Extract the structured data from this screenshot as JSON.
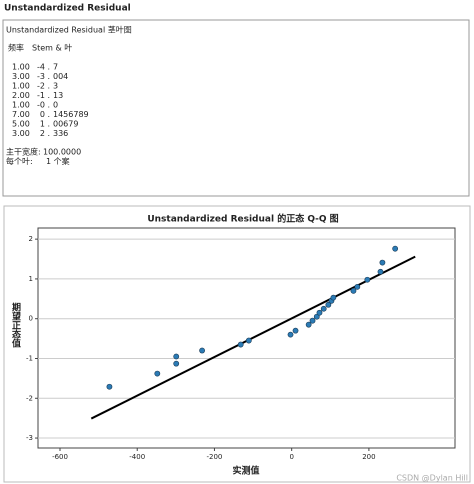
{
  "heading": "Unstandardized Residual",
  "stem_leaf": {
    "caption": "Unstandardized Residual 茎叶图",
    "columns": [
      "频率",
      "Stem &  叶"
    ],
    "rows": [
      [
        "1.00",
        "-4 .",
        "7"
      ],
      [
        "3.00",
        "-3 .",
        "004"
      ],
      [
        "1.00",
        "-2 .",
        "3"
      ],
      [
        "2.00",
        "-1 .",
        "13"
      ],
      [
        "1.00",
        "-0 .",
        "0"
      ],
      [
        "7.00",
        "0 .",
        "1456789"
      ],
      [
        "5.00",
        "1 .",
        "00679"
      ],
      [
        "3.00",
        "2 .",
        "336"
      ]
    ],
    "footer": [
      [
        "主干宽度:",
        "100.0000"
      ],
      [
        "每个叶:",
        "1 个案"
      ]
    ]
  },
  "chart_data": {
    "type": "scatter",
    "title": "Unstandardized Residual 的正态 Q-Q 图",
    "xlabel": "实测值",
    "ylabel": "期望正态值",
    "x": [
      -472,
      -348,
      -299,
      -299,
      -232,
      -132,
      -111,
      -3,
      10,
      44,
      54,
      65,
      72,
      83,
      95,
      103,
      108,
      160,
      170,
      196,
      230,
      235,
      268
    ],
    "values": [
      -1.71,
      -1.38,
      -0.95,
      -1.13,
      -0.8,
      -0.65,
      -0.55,
      -0.4,
      -0.3,
      -0.15,
      -0.05,
      0.05,
      0.15,
      0.25,
      0.35,
      0.45,
      0.53,
      0.7,
      0.8,
      0.98,
      1.18,
      1.41,
      1.76
    ],
    "color": "#2b7bb5",
    "reference_line": {
      "x": [
        -519,
        320
      ],
      "y": [
        -2.51,
        1.56
      ],
      "color": "#000000"
    },
    "xlim": [
      -657,
      423
    ],
    "ylim": [
      -3.25,
      2.28
    ],
    "xticks": [
      -600,
      -400,
      -200,
      0,
      200
    ],
    "yticks": [
      -3,
      -2,
      -1,
      0,
      1,
      2
    ],
    "grid": "y"
  },
  "watermark": "CSDN @Dylan Hill"
}
